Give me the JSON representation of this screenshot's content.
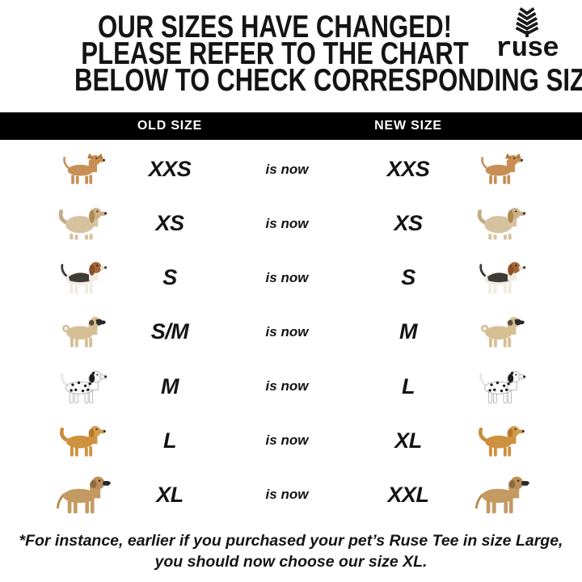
{
  "header": {
    "title_lines": [
      "OUR SIZES HAVE CHANGED!",
      "PLEASE REFER TO THE CHART",
      "BELOW TO CHECK CORRESPONDING SIZES"
    ],
    "logo": {
      "text": "ruse",
      "icon": "wheat-icon"
    }
  },
  "table": {
    "columns": {
      "old": "OLD SIZE",
      "new": "NEW SIZE"
    },
    "connector": "is now",
    "rows": [
      {
        "breed": "chihuahua",
        "old": "XXS",
        "new": "XXS"
      },
      {
        "breed": "lhasa-apso",
        "old": "XS",
        "new": "XS"
      },
      {
        "breed": "beagle",
        "old": "S",
        "new": "S"
      },
      {
        "breed": "pug",
        "old": "S/M",
        "new": "M"
      },
      {
        "breed": "dalmatian",
        "old": "M",
        "new": "L"
      },
      {
        "breed": "golden-retriever",
        "old": "L",
        "new": "XL"
      },
      {
        "breed": "great-dane",
        "old": "XL",
        "new": "XXL"
      }
    ]
  },
  "footer": {
    "note_lines": [
      "*For instance, earlier if you purchased your pet’s Ruse Tee in size Large,",
      "you should now choose our size XL."
    ]
  },
  "colors": {
    "bar_background": "#000000",
    "bar_text": "#ffffff",
    "text": "#141414",
    "background": "#ffffff"
  },
  "breeds": {
    "chihuahua": {
      "body": "#c78f55",
      "head": "#c98f52",
      "earType": "up",
      "earColor": "#b37a40",
      "snout": "#c98f52",
      "tail": "up",
      "tailColor": "#c78f55",
      "legLen": 20,
      "bodyRy": 12,
      "size": 50
    },
    "lhasa-apso": {
      "body": "#d7c2a0",
      "head": "#cdb289",
      "earType": "floppy",
      "earColor": "#b08950",
      "earLen": 13,
      "snout": "#c9ad82",
      "tail": "bushy",
      "tailColor": "#c4ab84",
      "legLen": 12,
      "bodyRy": 17,
      "size": 55
    },
    "beagle": {
      "body": "#f2ede2",
      "head": "#a5673a",
      "earType": "floppy",
      "earColor": "#8a4f26",
      "earLen": 11,
      "snout": "#e8dfcd",
      "tail": "up",
      "tailColor": "#3e3c36",
      "legLen": 22,
      "bodyRy": 13,
      "saddle": "#3e3c36",
      "size": 55
    },
    "pug": {
      "body": "#d7bf95",
      "head": "#d7bf95",
      "earType": "floppy",
      "earColor": "#5f5138",
      "earLen": 6,
      "snout": "#2b2b2b",
      "mask": "#2b2b2b",
      "tail": "curl",
      "tailColor": "#d7bf95",
      "legLen": 20,
      "bodyRy": 14,
      "size": 53
    },
    "dalmatian": {
      "body": "#fbfbfb",
      "head": "#fbfbfb",
      "earType": "floppy",
      "earColor": "#1d1d1d",
      "earLen": 9,
      "snout": "#f1f1f1",
      "tail": "up",
      "tailColor": "#e8e8e8",
      "legLen": 23,
      "bodyRy": 12,
      "spots": true,
      "outline": "#9a9a9a",
      "size": 55
    },
    "golden-retriever": {
      "body": "#ce913f",
      "head": "#d09c4d",
      "earType": "floppy",
      "earColor": "#b9772c",
      "earLen": 9,
      "snout": "#cf9a4a",
      "tail": "bushy",
      "tailColor": "#c98c38",
      "legLen": 21,
      "bodyRy": 13,
      "size": 53
    },
    "great-dane": {
      "body": "#c49a63",
      "head": "#ba8f58",
      "earType": "floppy",
      "earColor": "#8f6b3d",
      "earLen": 7,
      "snout": "#2b2b2b",
      "tail": "down",
      "tailColor": "#b68c55",
      "legLen": 30,
      "bodyRy": 12,
      "size": 63
    }
  }
}
